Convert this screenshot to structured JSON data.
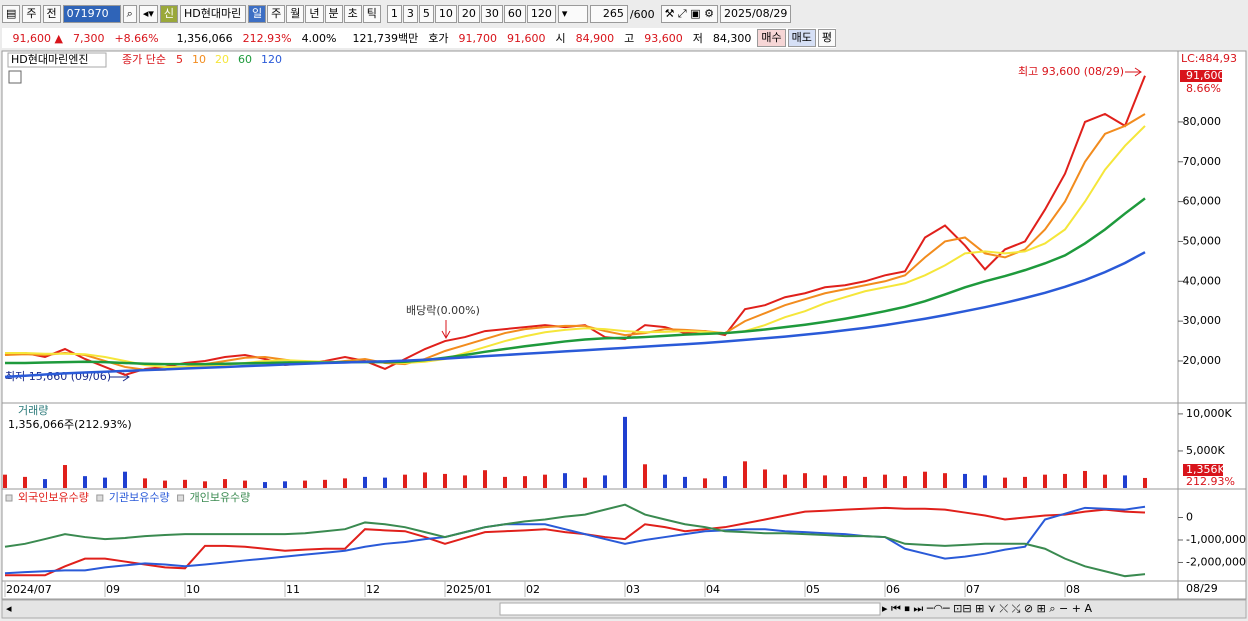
{
  "toolbar": {
    "period": "주",
    "prev": "전",
    "code": "071970",
    "name": "HD현대마린",
    "new": "신",
    "intervals": [
      "일",
      "주",
      "월",
      "년",
      "분",
      "초",
      "틱"
    ],
    "counts": [
      "1",
      "3",
      "5",
      "10",
      "20",
      "30",
      "60",
      "120"
    ],
    "shown": "265",
    "total": "/600",
    "date": "2025/08/29"
  },
  "quote": {
    "price": "91,600 ▲",
    "change": "7,300",
    "rate": "+8.66%",
    "volume": "1,356,066",
    "volume_rate": "212.93%",
    "turnover": "4.00%",
    "amount": "121,739백만",
    "ask_label": "호가",
    "ask": "91,700",
    "bid": "91,600",
    "open_label": "시",
    "open": "84,900",
    "high_label": "고",
    "high": "93,600",
    "low_label": "저",
    "low": "84,300",
    "buy": "매수",
    "sell": "매도",
    "avg": "평"
  },
  "cursor_date": "08/29",
  "chart_data": [
    {
      "type": "line",
      "title": "HD현대마린엔진",
      "legend_title": "종가 단순",
      "categories": [
        "2024/07",
        null,
        null,
        null,
        null,
        "09",
        null,
        null,
        null,
        "10",
        null,
        null,
        null,
        null,
        "11",
        null,
        null,
        null,
        "12",
        null,
        null,
        null,
        "2025/01",
        null,
        null,
        null,
        "02",
        null,
        null,
        null,
        null,
        "03",
        null,
        null,
        null,
        "04",
        null,
        null,
        null,
        null,
        "05",
        null,
        null,
        null,
        "06",
        null,
        null,
        null,
        "07",
        null,
        null,
        null,
        null,
        "08",
        null,
        null,
        null,
        null
      ],
      "ylim": [
        9700,
        96800
      ],
      "yticks": [
        {
          "value": 20000,
          "label": "20,000"
        },
        {
          "value": 30000,
          "label": "30,000"
        },
        {
          "value": 40000,
          "label": "40,000"
        },
        {
          "value": 50000,
          "label": "50,000"
        },
        {
          "value": 60000,
          "label": "60,000"
        },
        {
          "value": 70000,
          "label": "70,000"
        },
        {
          "value": 80000,
          "label": "80,000"
        }
      ],
      "right_labels": {
        "lc": "LC:484,93",
        "last": "91,600",
        "rate": "8.66%"
      },
      "annotations": {
        "high": "최고 93,600 (08/29)",
        "low": "최저 15,660 (09/06)",
        "dividend": "배당락(0.00%)"
      },
      "series": [
        {
          "name": "5",
          "color": "#e0201b",
          "values": [
            21500,
            22000,
            21000,
            23000,
            20500,
            18500,
            16500,
            18000,
            18500,
            19500,
            20000,
            21000,
            21500,
            20500,
            19000,
            19500,
            20000,
            21000,
            20000,
            18000,
            20500,
            23000,
            25000,
            26000,
            27500,
            28000,
            28500,
            29000,
            28500,
            29000,
            26000,
            25500,
            29000,
            28500,
            27000,
            27500,
            26500,
            33000,
            34000,
            36000,
            37000,
            38500,
            39000,
            40000,
            41500,
            42500,
            51000,
            54000,
            49000,
            43000,
            48000,
            50000,
            58000,
            67000,
            80000,
            82000,
            79000,
            91600
          ]
        },
        {
          "name": "10",
          "color": "#f28c1e",
          "values": [
            21500,
            21700,
            21500,
            22000,
            21500,
            20000,
            18500,
            17800,
            17800,
            18500,
            19200,
            20000,
            20800,
            21000,
            20300,
            19600,
            19500,
            20000,
            20500,
            19500,
            19200,
            20500,
            22500,
            24000,
            25500,
            27000,
            28000,
            28500,
            28800,
            28800,
            27500,
            26500,
            27000,
            28000,
            27800,
            27500,
            27000,
            30000,
            32000,
            34000,
            35500,
            37000,
            38000,
            39000,
            40000,
            41500,
            46000,
            50000,
            51000,
            47000,
            46000,
            48000,
            53000,
            60000,
            70000,
            77000,
            79000,
            82000
          ]
        },
        {
          "name": "20",
          "color": "#f5e63a",
          "values": [
            22000,
            22000,
            21800,
            21800,
            21700,
            21000,
            20000,
            19000,
            18500,
            18500,
            18700,
            19000,
            19500,
            20000,
            20200,
            20000,
            19800,
            19700,
            19800,
            19700,
            19500,
            19800,
            20500,
            22000,
            23500,
            25000,
            26200,
            27200,
            27800,
            28200,
            28000,
            27500,
            27200,
            27300,
            27500,
            27300,
            27000,
            27500,
            29000,
            31000,
            32500,
            34500,
            36000,
            37500,
            38500,
            39500,
            41500,
            44000,
            47000,
            47500,
            47000,
            47500,
            49500,
            53000,
            60000,
            68000,
            74000,
            79000
          ]
        },
        {
          "name": "60",
          "color": "#1e9a3c",
          "values": [
            19500,
            19500,
            19600,
            19700,
            19800,
            19700,
            19500,
            19300,
            19200,
            19200,
            19200,
            19300,
            19400,
            19500,
            19600,
            19600,
            19600,
            19700,
            19700,
            19700,
            19800,
            20200,
            20800,
            21500,
            22300,
            23000,
            23700,
            24300,
            24900,
            25400,
            25700,
            25800,
            26000,
            26300,
            26600,
            26800,
            27000,
            27400,
            27900,
            28500,
            29100,
            29800,
            30600,
            31500,
            32500,
            33600,
            35000,
            36700,
            38500,
            40000,
            41300,
            42800,
            44500,
            46500,
            49500,
            53000,
            57000,
            60800
          ]
        },
        {
          "name": "120",
          "color": "#2a5ad8",
          "values": [
            16000,
            16300,
            16600,
            16900,
            17100,
            17300,
            17500,
            17700,
            17900,
            18100,
            18300,
            18500,
            18700,
            18900,
            19100,
            19300,
            19500,
            19600,
            19800,
            19900,
            20100,
            20300,
            20600,
            20900,
            21200,
            21500,
            21800,
            22100,
            22400,
            22700,
            23000,
            23300,
            23600,
            23900,
            24200,
            24500,
            24900,
            25300,
            25700,
            26100,
            26600,
            27100,
            27700,
            28300,
            29000,
            29800,
            30600,
            31500,
            32500,
            33500,
            34600,
            35800,
            37100,
            38600,
            40300,
            42300,
            44600,
            47300
          ]
        }
      ]
    },
    {
      "type": "bar",
      "title": "거래량",
      "subtitle": "1,356,066주(212.93%)",
      "up_color": "#e0201b",
      "down_color": "#1f3fd0",
      "ylim": [
        0,
        11200000
      ],
      "yticks": [
        {
          "value": 5000000,
          "label": "5,000K"
        },
        {
          "value": 10000000,
          "label": "10,000K"
        }
      ],
      "right_labels": {
        "last": "1,356K",
        "rate": "212.93%"
      },
      "values": [
        1800000,
        1500000,
        1200000,
        3100000,
        1600000,
        1400000,
        2200000,
        1300000,
        1000000,
        1100000,
        900000,
        1200000,
        1000000,
        800000,
        900000,
        1000000,
        1100000,
        1300000,
        1500000,
        1400000,
        1800000,
        2100000,
        1900000,
        1700000,
        2400000,
        1500000,
        1600000,
        1800000,
        2000000,
        1400000,
        1700000,
        9600000,
        3200000,
        1800000,
        1500000,
        1300000,
        1600000,
        3600000,
        2500000,
        1800000,
        2000000,
        1700000,
        1600000,
        1500000,
        1800000,
        1600000,
        2200000,
        2000000,
        1900000,
        1700000,
        1400000,
        1500000,
        1800000,
        1900000,
        2300000,
        1800000,
        1700000,
        1356066
      ]
    },
    {
      "type": "line",
      "ylim": [
        -2780000,
        1090000
      ],
      "yticks": [
        0,
        {
          "value": -1000000,
          "label": "-1,000,000"
        },
        {
          "value": -2000000,
          "label": "-2,000,000"
        }
      ],
      "series": [
        {
          "name": "외국인보유수량",
          "color": "#e0201b",
          "values": [
            -2570000,
            -2570000,
            -2570000,
            -2170000,
            -1830000,
            -1830000,
            -1960000,
            -2090000,
            -2220000,
            -2260000,
            -1260000,
            -1260000,
            -1300000,
            -1390000,
            -1480000,
            -1430000,
            -1390000,
            -1390000,
            -520000,
            -570000,
            -610000,
            -870000,
            -1170000,
            -910000,
            -650000,
            -610000,
            -570000,
            -520000,
            -650000,
            -740000,
            -870000,
            -960000,
            -300000,
            -430000,
            -610000,
            -520000,
            -430000,
            -260000,
            -90000,
            90000,
            260000,
            300000,
            350000,
            390000,
            430000,
            390000,
            390000,
            350000,
            220000,
            90000,
            -90000,
            0,
            90000,
            130000,
            260000,
            350000,
            260000,
            220000
          ]
        },
        {
          "name": "기관보유수량",
          "color": "#2a5ad8",
          "values": [
            -2480000,
            -2430000,
            -2390000,
            -2350000,
            -2350000,
            -2220000,
            -2130000,
            -2040000,
            -2090000,
            -2170000,
            -2090000,
            -2000000,
            -1910000,
            -1830000,
            -1740000,
            -1650000,
            -1570000,
            -1480000,
            -1300000,
            -1170000,
            -1090000,
            -960000,
            -870000,
            -650000,
            -430000,
            -300000,
            -300000,
            -300000,
            -520000,
            -740000,
            -960000,
            -1170000,
            -1000000,
            -870000,
            -740000,
            -610000,
            -570000,
            -520000,
            -520000,
            -610000,
            -650000,
            -700000,
            -740000,
            -830000,
            -870000,
            -1390000,
            -1610000,
            -1830000,
            -1740000,
            -1610000,
            -1430000,
            -1300000,
            -90000,
            170000,
            430000,
            390000,
            350000,
            480000
          ]
        },
        {
          "name": "개인보유수량",
          "color": "#3a8a50",
          "values": [
            -1300000,
            -1170000,
            -960000,
            -740000,
            -870000,
            -960000,
            -910000,
            -830000,
            -780000,
            -740000,
            -740000,
            -740000,
            -740000,
            -740000,
            -740000,
            -700000,
            -610000,
            -520000,
            -220000,
            -300000,
            -430000,
            -650000,
            -870000,
            -650000,
            -430000,
            -300000,
            -170000,
            -90000,
            40000,
            130000,
            350000,
            570000,
            130000,
            -90000,
            -300000,
            -430000,
            -610000,
            -650000,
            -700000,
            -700000,
            -740000,
            -780000,
            -830000,
            -830000,
            -870000,
            -1170000,
            -1220000,
            -1260000,
            -1220000,
            -1170000,
            -1170000,
            -1170000,
            -1390000,
            -1830000,
            -2170000,
            -2390000,
            -2610000,
            -2520000
          ]
        }
      ]
    }
  ]
}
